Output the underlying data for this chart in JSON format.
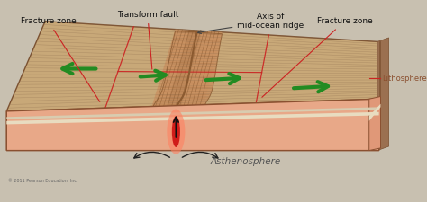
{
  "labels": {
    "fracture_zone_left": "Fracture zone",
    "transform_fault": "Transform fault",
    "axis_mid_ocean": "Axis of\nmid-ocean ridge",
    "fracture_zone_right": "Fracture zone",
    "lithosphere": "Lithosphere",
    "asthenosphere": "Asthenosphere",
    "copyright": "© 2011 Pearson Education, Inc."
  },
  "colors": {
    "bg": "#c8c0b0",
    "plate_tan": "#c8a878",
    "plate_stripe": "#b89060",
    "plate_dark": "#a07848",
    "plate_side_dark": "#9b7050",
    "plate_side_light": "#c8a878",
    "asth_top": "#e8a888",
    "asth_mid": "#e09878",
    "asth_pink": "#f0b898",
    "asth_front": "#d88868",
    "litho_cream": "#e8dcc0",
    "litho_cream2": "#d8ccb0",
    "ridge_brown": "#8b5a30",
    "ridge_light": "#c89060",
    "lava_red": "#cc1010",
    "lava_orange": "#ff4020",
    "lava_glow": "#ff8060",
    "arrow_green": "#228B22",
    "arrow_dark": "#333333",
    "line_red": "#cc2222",
    "line_black": "#444444",
    "white_cream": "#f0e8d0",
    "stripe_light": "#e0c8a0",
    "stripe_dark": "#907050"
  },
  "figsize": [
    4.74,
    2.25
  ],
  "dpi": 100
}
